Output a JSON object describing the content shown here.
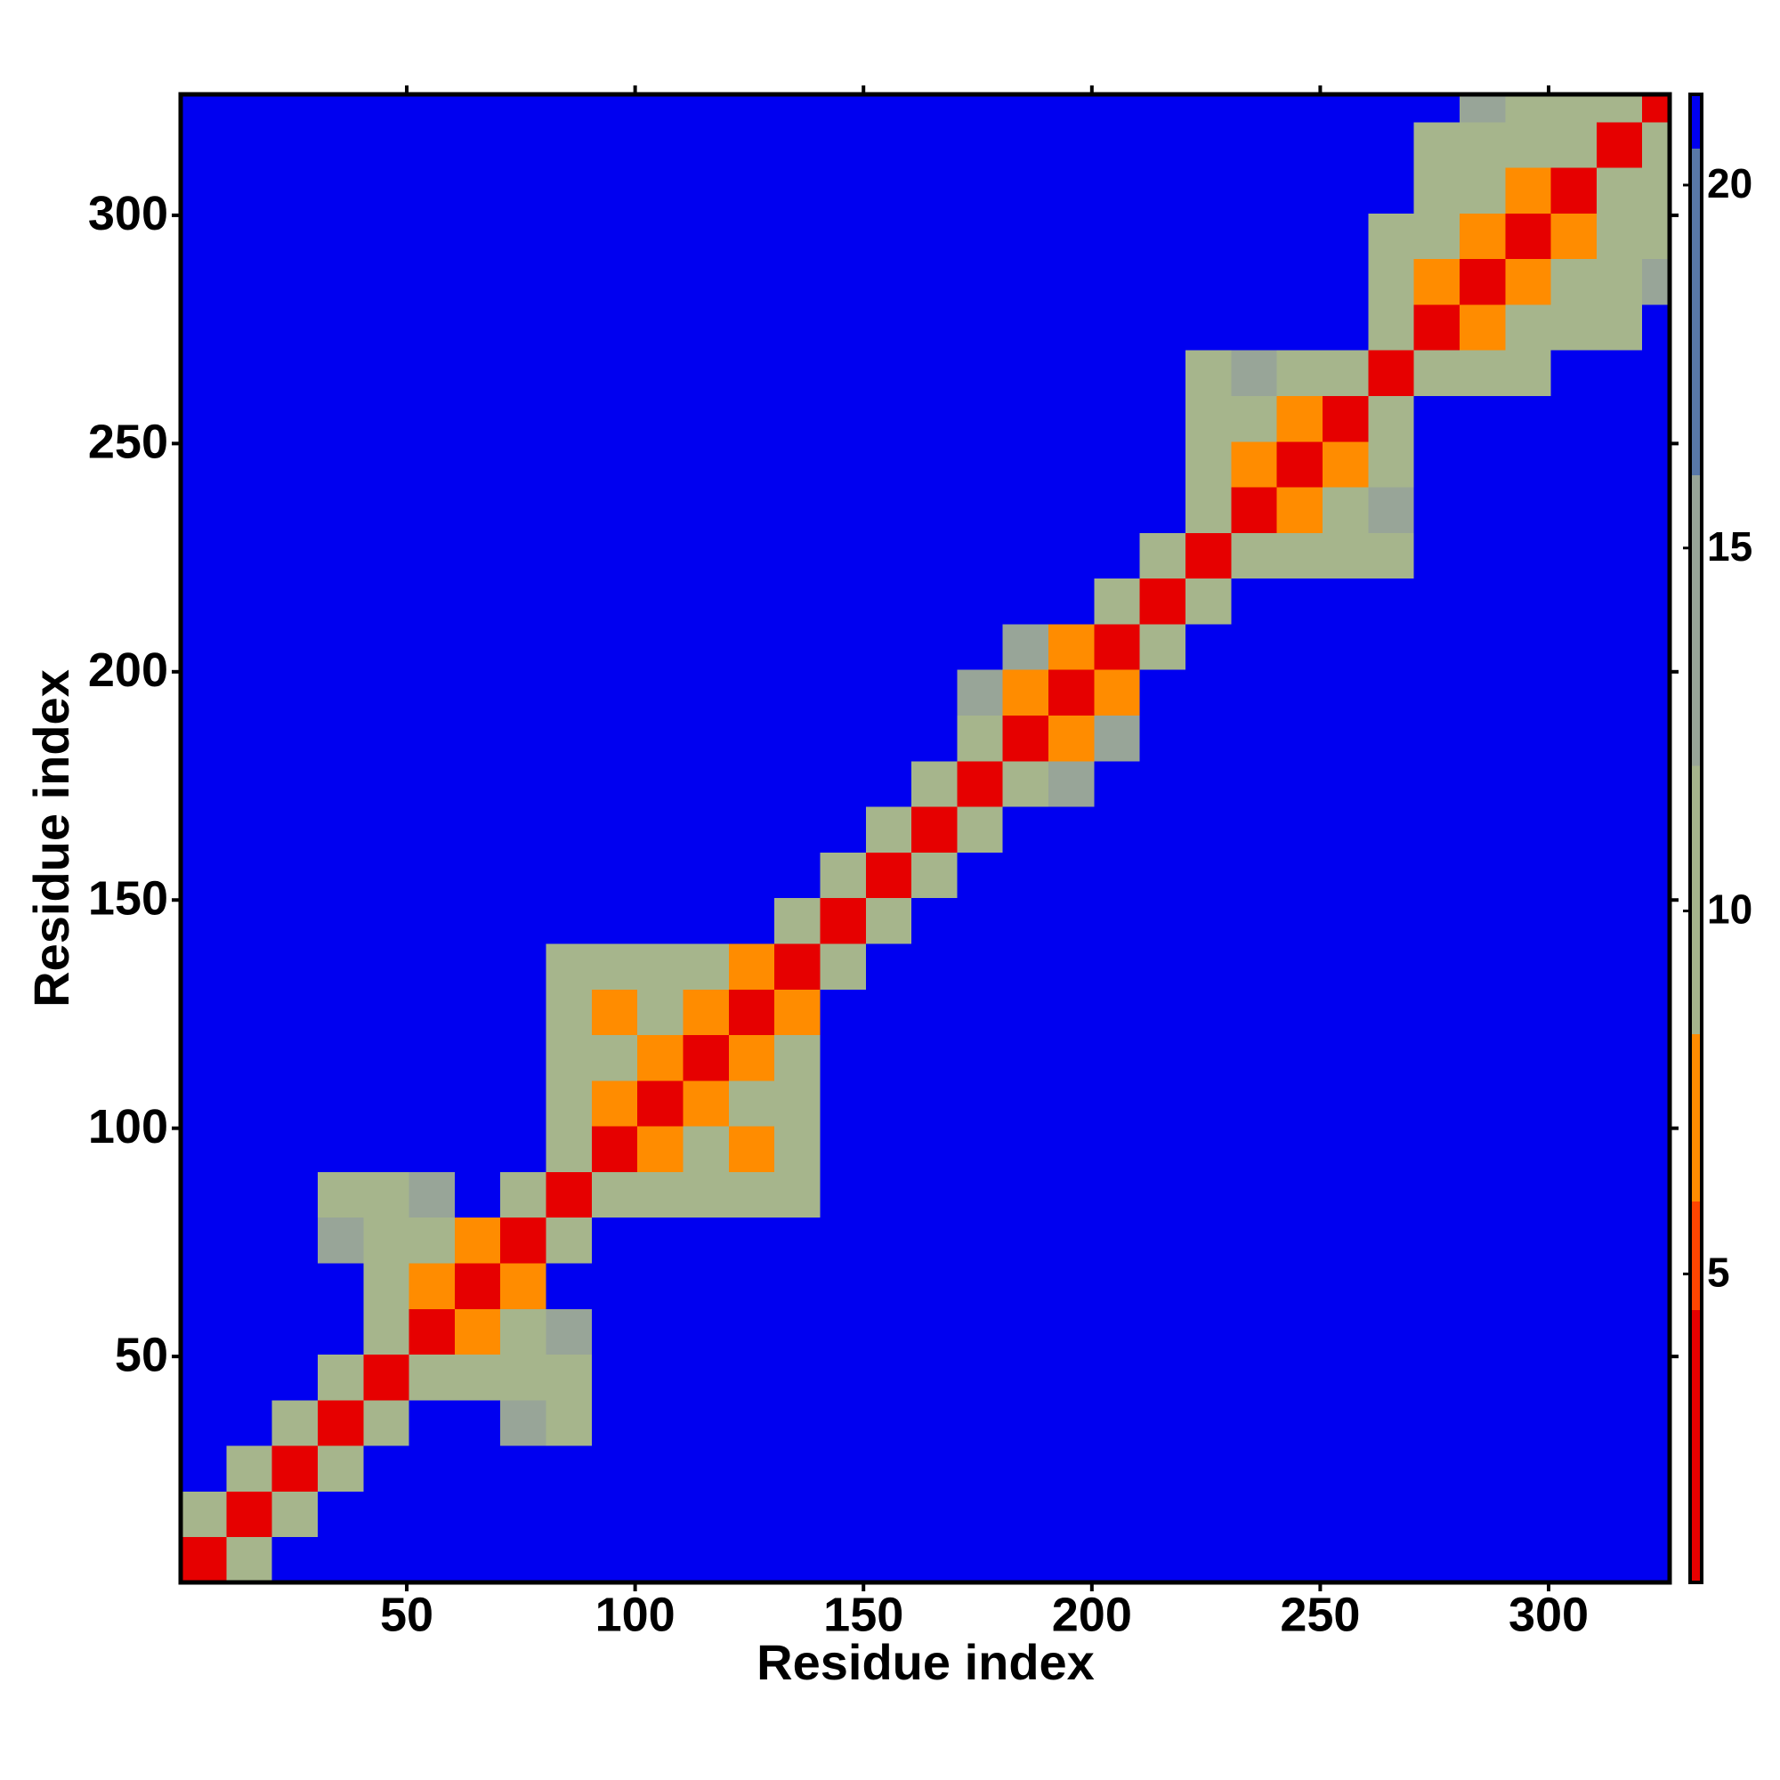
{
  "chart_data": {
    "type": "heatmap",
    "xlabel": "Residue index",
    "ylabel": "Residue index",
    "xlim": [
      0.5,
      326.5
    ],
    "ylim": [
      0.5,
      326.5
    ],
    "xticks": [
      50,
      100,
      150,
      200,
      250,
      300
    ],
    "yticks": [
      50,
      100,
      150,
      200,
      250,
      300
    ],
    "x_bins": [
      0.5,
      10.5,
      20.5,
      30.5,
      40.5,
      50.5,
      60.5,
      70.5,
      80.5,
      90.5,
      100.5,
      110.5,
      120.5,
      130.5,
      140.5,
      150.5,
      160.5,
      170.5,
      180.5,
      190.5,
      200.5,
      210.5,
      220.5,
      230.5,
      240.5,
      250.5,
      260.5,
      270.5,
      280.5,
      290.5,
      300.5,
      310.5,
      320.5,
      326.5
    ],
    "y_bins": [
      0.5,
      10.5,
      20.5,
      30.5,
      40.5,
      50.5,
      60.5,
      70.5,
      80.5,
      90.5,
      100.5,
      110.5,
      120.5,
      130.5,
      140.5,
      150.5,
      160.5,
      170.5,
      180.5,
      190.5,
      200.5,
      210.5,
      220.5,
      230.5,
      240.5,
      250.5,
      260.5,
      270.5,
      280.5,
      290.5,
      300.5,
      310.5,
      320.5,
      326.5
    ],
    "z": [
      [
        4,
        9,
        21,
        21,
        21,
        21,
        21,
        21,
        21,
        21,
        21,
        21,
        21,
        21,
        21,
        21,
        21,
        21,
        21,
        21,
        21,
        21,
        21,
        21,
        21,
        21,
        21,
        21,
        21,
        21,
        21,
        21,
        21
      ],
      [
        9,
        4,
        10,
        21,
        21,
        21,
        21,
        21,
        21,
        21,
        21,
        21,
        21,
        21,
        21,
        21,
        21,
        21,
        21,
        21,
        21,
        21,
        21,
        21,
        21,
        21,
        21,
        21,
        21,
        21,
        21,
        21,
        21
      ],
      [
        21,
        10,
        4,
        10,
        21,
        21,
        21,
        21,
        21,
        21,
        21,
        21,
        21,
        21,
        21,
        21,
        21,
        21,
        21,
        21,
        21,
        21,
        21,
        21,
        21,
        21,
        21,
        21,
        21,
        21,
        21,
        21,
        21
      ],
      [
        21,
        21,
        10,
        4,
        10,
        21,
        21,
        12,
        11,
        21,
        21,
        21,
        21,
        21,
        21,
        21,
        21,
        21,
        21,
        21,
        21,
        21,
        21,
        21,
        21,
        21,
        21,
        21,
        21,
        21,
        21,
        21,
        21
      ],
      [
        21,
        21,
        21,
        10,
        4,
        9,
        11,
        10,
        11,
        21,
        21,
        21,
        21,
        21,
        21,
        21,
        21,
        21,
        21,
        21,
        21,
        21,
        21,
        21,
        21,
        21,
        21,
        21,
        21,
        21,
        21,
        21,
        21
      ],
      [
        21,
        21,
        21,
        21,
        9,
        4,
        8,
        10,
        12,
        21,
        21,
        21,
        21,
        21,
        21,
        21,
        21,
        21,
        21,
        21,
        21,
        21,
        21,
        21,
        21,
        21,
        21,
        21,
        21,
        21,
        21,
        21,
        21
      ],
      [
        21,
        21,
        21,
        21,
        11,
        8,
        4,
        8,
        21,
        21,
        21,
        21,
        21,
        21,
        21,
        21,
        21,
        21,
        21,
        21,
        21,
        21,
        21,
        21,
        21,
        21,
        21,
        21,
        21,
        21,
        21,
        21,
        21
      ],
      [
        21,
        21,
        21,
        12,
        10,
        10,
        8,
        4,
        9,
        21,
        21,
        21,
        21,
        21,
        21,
        21,
        21,
        21,
        21,
        21,
        21,
        21,
        21,
        21,
        21,
        21,
        21,
        21,
        21,
        21,
        21,
        21,
        21
      ],
      [
        21,
        21,
        21,
        11,
        11,
        12,
        21,
        9,
        4,
        9,
        10,
        11,
        11,
        11,
        21,
        21,
        21,
        21,
        21,
        21,
        21,
        21,
        21,
        21,
        21,
        21,
        21,
        21,
        21,
        21,
        21,
        21,
        21
      ],
      [
        21,
        21,
        21,
        21,
        21,
        21,
        21,
        21,
        9,
        4,
        8,
        10,
        8,
        9,
        21,
        21,
        21,
        21,
        21,
        21,
        21,
        21,
        21,
        21,
        21,
        21,
        21,
        21,
        21,
        21,
        21,
        21,
        21
      ],
      [
        21,
        21,
        21,
        21,
        21,
        21,
        21,
        21,
        10,
        8,
        4,
        8,
        9,
        10,
        21,
        21,
        21,
        21,
        21,
        21,
        21,
        21,
        21,
        21,
        21,
        21,
        21,
        21,
        21,
        21,
        21,
        21,
        21
      ],
      [
        21,
        21,
        21,
        21,
        21,
        21,
        21,
        21,
        11,
        10,
        8,
        4,
        8,
        9,
        21,
        21,
        21,
        21,
        21,
        21,
        21,
        21,
        21,
        21,
        21,
        21,
        21,
        21,
        21,
        21,
        21,
        21,
        21
      ],
      [
        21,
        21,
        21,
        21,
        21,
        21,
        21,
        21,
        11,
        8,
        9,
        8,
        4,
        8,
        21,
        21,
        21,
        21,
        21,
        21,
        21,
        21,
        21,
        21,
        21,
        21,
        21,
        21,
        21,
        21,
        21,
        21,
        21
      ],
      [
        21,
        21,
        21,
        21,
        21,
        21,
        21,
        21,
        11,
        9,
        10,
        9,
        8,
        4,
        10,
        21,
        21,
        21,
        21,
        21,
        21,
        21,
        21,
        21,
        21,
        21,
        21,
        21,
        21,
        21,
        21,
        21,
        21
      ],
      [
        21,
        21,
        21,
        21,
        21,
        21,
        21,
        21,
        21,
        21,
        21,
        21,
        21,
        10,
        4,
        10,
        21,
        21,
        21,
        21,
        21,
        21,
        21,
        21,
        21,
        21,
        21,
        21,
        21,
        21,
        21,
        21,
        21
      ],
      [
        21,
        21,
        21,
        21,
        21,
        21,
        21,
        21,
        21,
        21,
        21,
        21,
        21,
        21,
        10,
        4,
        10,
        21,
        21,
        21,
        21,
        21,
        21,
        21,
        21,
        21,
        21,
        21,
        21,
        21,
        21,
        21,
        21
      ],
      [
        21,
        21,
        21,
        21,
        21,
        21,
        21,
        21,
        21,
        21,
        21,
        21,
        21,
        21,
        21,
        10,
        4,
        10,
        21,
        21,
        21,
        21,
        21,
        21,
        21,
        21,
        21,
        21,
        21,
        21,
        21,
        21,
        21
      ],
      [
        21,
        21,
        21,
        21,
        21,
        21,
        21,
        21,
        21,
        21,
        21,
        21,
        21,
        21,
        21,
        21,
        10,
        4,
        9,
        12,
        21,
        21,
        21,
        21,
        21,
        21,
        21,
        21,
        21,
        21,
        21,
        21,
        21
      ],
      [
        21,
        21,
        21,
        21,
        21,
        21,
        21,
        21,
        21,
        21,
        21,
        21,
        21,
        21,
        21,
        21,
        21,
        9,
        4,
        8,
        12,
        21,
        21,
        21,
        21,
        21,
        21,
        21,
        21,
        21,
        21,
        21,
        21
      ],
      [
        21,
        21,
        21,
        21,
        21,
        21,
        21,
        21,
        21,
        21,
        21,
        21,
        21,
        21,
        21,
        21,
        21,
        12,
        8,
        4,
        8,
        21,
        21,
        21,
        21,
        21,
        21,
        21,
        21,
        21,
        21,
        21,
        21
      ],
      [
        21,
        21,
        21,
        21,
        21,
        21,
        21,
        21,
        21,
        21,
        21,
        21,
        21,
        21,
        21,
        21,
        21,
        21,
        12,
        8,
        4,
        10,
        21,
        21,
        21,
        21,
        21,
        21,
        21,
        21,
        21,
        21,
        21
      ],
      [
        21,
        21,
        21,
        21,
        21,
        21,
        21,
        21,
        21,
        21,
        21,
        21,
        21,
        21,
        21,
        21,
        21,
        21,
        21,
        21,
        10,
        4,
        10,
        21,
        21,
        21,
        21,
        21,
        21,
        21,
        21,
        21,
        21
      ],
      [
        21,
        21,
        21,
        21,
        21,
        21,
        21,
        21,
        21,
        21,
        21,
        21,
        21,
        21,
        21,
        21,
        21,
        21,
        21,
        21,
        21,
        10,
        4,
        9,
        11,
        10,
        10,
        21,
        21,
        21,
        21,
        21,
        21
      ],
      [
        21,
        21,
        21,
        21,
        21,
        21,
        21,
        21,
        21,
        21,
        21,
        21,
        21,
        21,
        21,
        21,
        21,
        21,
        21,
        21,
        21,
        21,
        9,
        4,
        8,
        11,
        12,
        21,
        21,
        21,
        21,
        21,
        21
      ],
      [
        21,
        21,
        21,
        21,
        21,
        21,
        21,
        21,
        21,
        21,
        21,
        21,
        21,
        21,
        21,
        21,
        21,
        21,
        21,
        21,
        21,
        21,
        11,
        8,
        4,
        8,
        11,
        21,
        21,
        21,
        21,
        21,
        21
      ],
      [
        21,
        21,
        21,
        21,
        21,
        21,
        21,
        21,
        21,
        21,
        21,
        21,
        21,
        21,
        21,
        21,
        21,
        21,
        21,
        21,
        21,
        21,
        10,
        11,
        8,
        4,
        9,
        21,
        21,
        21,
        21,
        21,
        21
      ],
      [
        21,
        21,
        21,
        21,
        21,
        21,
        21,
        21,
        21,
        21,
        21,
        21,
        21,
        21,
        21,
        21,
        21,
        21,
        21,
        21,
        21,
        21,
        10,
        12,
        11,
        9,
        4,
        9,
        10,
        11,
        21,
        21,
        21
      ],
      [
        21,
        21,
        21,
        21,
        21,
        21,
        21,
        21,
        21,
        21,
        21,
        21,
        21,
        21,
        21,
        21,
        21,
        21,
        21,
        21,
        21,
        21,
        21,
        21,
        21,
        21,
        9,
        4,
        8,
        9,
        10,
        11,
        21
      ],
      [
        21,
        21,
        21,
        21,
        21,
        21,
        21,
        21,
        21,
        21,
        21,
        21,
        21,
        21,
        21,
        21,
        21,
        21,
        21,
        21,
        21,
        21,
        21,
        21,
        21,
        21,
        10,
        8,
        4,
        8,
        9,
        10,
        12
      ],
      [
        21,
        21,
        21,
        21,
        21,
        21,
        21,
        21,
        21,
        21,
        21,
        21,
        21,
        21,
        21,
        21,
        21,
        21,
        21,
        21,
        21,
        21,
        21,
        21,
        21,
        21,
        11,
        9,
        8,
        4,
        8,
        9,
        11
      ],
      [
        21,
        21,
        21,
        21,
        21,
        21,
        21,
        21,
        21,
        21,
        21,
        21,
        21,
        21,
        21,
        21,
        21,
        21,
        21,
        21,
        21,
        21,
        21,
        21,
        21,
        21,
        21,
        10,
        9,
        8,
        4,
        9,
        10
      ],
      [
        21,
        21,
        21,
        21,
        21,
        21,
        21,
        21,
        21,
        21,
        21,
        21,
        21,
        21,
        21,
        21,
        21,
        21,
        21,
        21,
        21,
        21,
        21,
        21,
        21,
        21,
        21,
        11,
        10,
        9,
        9,
        4,
        9
      ],
      [
        21,
        21,
        21,
        21,
        21,
        21,
        21,
        21,
        21,
        21,
        21,
        21,
        21,
        21,
        21,
        21,
        21,
        21,
        21,
        21,
        21,
        21,
        21,
        21,
        21,
        21,
        21,
        21,
        12,
        11,
        10,
        9,
        4
      ]
    ],
    "colorbar": {
      "lim": [
        0.75,
        21.25
      ],
      "ticks": [
        5,
        10,
        15,
        20
      ],
      "colorscale": [
        [
          0.75,
          "#e60000"
        ],
        [
          4.5,
          "#ff4500"
        ],
        [
          6,
          "#ff8c00"
        ],
        [
          8.3,
          "#a6b58c"
        ],
        [
          12,
          "#98a598"
        ],
        [
          16,
          "#5878a8"
        ],
        [
          20.5,
          "#0000f0"
        ]
      ]
    }
  }
}
